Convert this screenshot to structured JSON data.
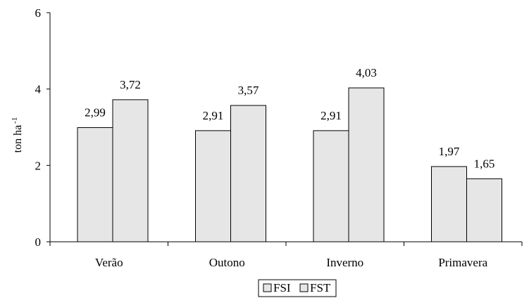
{
  "chart_data": {
    "type": "bar",
    "title": "",
    "xlabel": "",
    "ylabel": "ton ha",
    "ylabel_superscript": "-1",
    "ylim": [
      0,
      6
    ],
    "yticks": [
      "0",
      "2",
      "4",
      "6"
    ],
    "categories": [
      "Verão",
      "Outono",
      "Inverno",
      "Primavera"
    ],
    "series": [
      {
        "name": "FSI",
        "values": [
          2.99,
          2.91,
          2.91,
          1.97
        ],
        "labels": [
          "2,99",
          "2,91",
          "2,91",
          "1,97"
        ]
      },
      {
        "name": "FST",
        "values": [
          3.72,
          3.57,
          4.03,
          1.65
        ],
        "labels": [
          "3,72",
          "3,57",
          "4,03",
          "1,65"
        ]
      }
    ],
    "bar_fill": "#e6e6e6",
    "bar_stroke": "#000000",
    "grid": false,
    "legend_position": "bottom-center"
  }
}
